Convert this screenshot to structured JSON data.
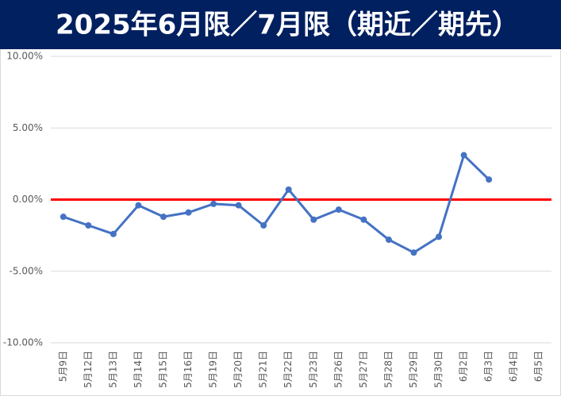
{
  "chart_data": {
    "type": "line",
    "title": "2025年6月限／7月限（期近／期先）",
    "categories": [
      "5月9日",
      "5月12日",
      "5月13日",
      "5月14日",
      "5月15日",
      "5月16日",
      "5月19日",
      "5月20日",
      "5月21日",
      "5月22日",
      "5月23日",
      "5月26日",
      "5月27日",
      "5月28日",
      "5月29日",
      "5月30日",
      "6月2日",
      "6月3日",
      "6月4日",
      "6月5日"
    ],
    "values": [
      -1.2,
      -1.8,
      -2.4,
      -0.4,
      -1.2,
      -0.9,
      -0.3,
      -0.4,
      -1.8,
      0.7,
      -1.4,
      -0.7,
      -1.4,
      -2.8,
      -3.7,
      -2.6,
      3.1,
      1.4,
      null,
      null
    ],
    "color": "#4472c4",
    "ylim": [
      -10,
      10
    ],
    "yticks": [
      {
        "value": -10,
        "label": "-10.00%"
      },
      {
        "value": -5,
        "label": "-5.00%"
      },
      {
        "value": 0,
        "label": "0.00%"
      },
      {
        "value": 5,
        "label": "5.00%"
      },
      {
        "value": 10,
        "label": "10.00%"
      }
    ],
    "grid": true,
    "reference_line": {
      "value": 0,
      "color": "#ff0000"
    }
  }
}
